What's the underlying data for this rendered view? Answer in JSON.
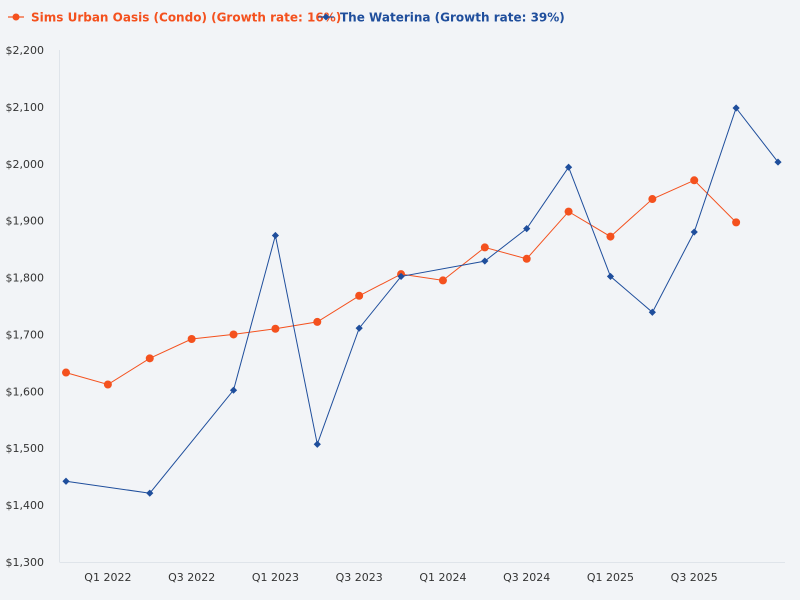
{
  "chart_data": {
    "type": "line",
    "title": "",
    "xlabel": "",
    "ylabel": "",
    "ylim": [
      1300,
      2200
    ],
    "y_ticks": [
      1300,
      1400,
      1500,
      1600,
      1700,
      1800,
      1900,
      2000,
      2100,
      2200
    ],
    "y_tick_labels": [
      "$1,300",
      "$1,400",
      "$1,500",
      "$1,600",
      "$1,700",
      "$1,800",
      "$1,900",
      "$2,000",
      "$2,100",
      "$2,200"
    ],
    "x_tick_labels": [
      "Q1 2022",
      "Q3 2022",
      "Q1 2023",
      "Q3 2023",
      "Q1 2024",
      "Q3 2024",
      "Q1 2025",
      "Q3 2025"
    ],
    "grid": false,
    "legend_position": "top-left",
    "series": [
      {
        "name": "Sims Urban Oasis (Condo) (Growth rate: 16%)",
        "color": "#f4511e",
        "marker": "circle",
        "x": [
          0,
          1,
          2,
          3,
          4,
          5,
          6,
          7,
          8,
          9,
          10,
          11,
          12,
          13,
          14,
          15,
          16
        ],
        "values": [
          1633,
          1612,
          1658,
          1692,
          1700,
          1710,
          1722,
          1768,
          1806,
          1795,
          1853,
          1833,
          1916,
          1872,
          1938,
          1971,
          1897
        ]
      },
      {
        "name": "The Waterina (Growth rate: 39%)",
        "color": "#1f4e9c",
        "marker": "diamond",
        "x": [
          0,
          2,
          4,
          5,
          6,
          7,
          8,
          10,
          11,
          12,
          13,
          14,
          15,
          16,
          17
        ],
        "values": [
          1442,
          1421,
          1602,
          1874,
          1507,
          1711,
          1802,
          1829,
          1886,
          1994,
          1802,
          1739,
          1880,
          2098,
          2003
        ]
      }
    ]
  }
}
